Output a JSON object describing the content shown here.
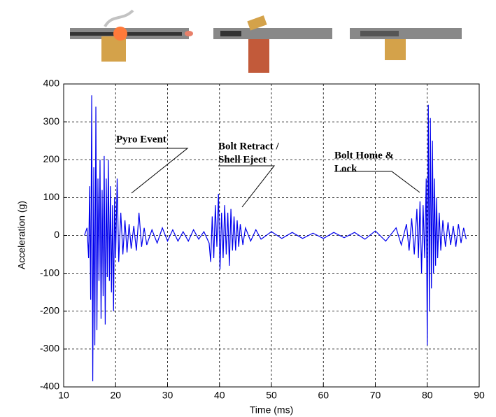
{
  "chart_data": {
    "type": "line",
    "x_label": "Time (ms)",
    "y_label": "Acceleration (g)",
    "xlim": [
      10,
      90
    ],
    "ylim": [
      -400,
      400
    ],
    "xticks": [
      10,
      20,
      30,
      40,
      50,
      60,
      70,
      80,
      90
    ],
    "yticks": [
      -400,
      -300,
      -200,
      -100,
      0,
      100,
      200,
      300,
      400
    ],
    "grid": true,
    "annotations": [
      {
        "lines": [
          "Pyro Event"
        ]
      },
      {
        "lines": [
          "Bolt Retract /",
          "Shell Eject"
        ]
      },
      {
        "lines": [
          "Bolt Home &",
          "Lock"
        ]
      }
    ],
    "series": [
      {
        "color": "#0000ee",
        "x": [
          14,
          14.5,
          14.8,
          15.0,
          15.2,
          15.4,
          15.6,
          15.8,
          16.0,
          16.2,
          16.4,
          16.6,
          16.8,
          17.0,
          17.2,
          17.4,
          17.6,
          17.8,
          18.0,
          18.2,
          18.4,
          18.6,
          18.8,
          19.0,
          19.2,
          19.4,
          19.6,
          19.8,
          20.0,
          20.3,
          20.6,
          21.0,
          21.4,
          21.8,
          22.2,
          22.6,
          23.0,
          23.5,
          24.0,
          24.5,
          25.0,
          25.5,
          26.0,
          27,
          28,
          29,
          30,
          31,
          32,
          33,
          34,
          35,
          36,
          37,
          38,
          38.3,
          38.6,
          38.9,
          39.2,
          39.5,
          39.8,
          40.1,
          40.4,
          40.7,
          41.0,
          41.3,
          41.6,
          41.9,
          42.2,
          42.5,
          42.8,
          43.1,
          43.4,
          43.7,
          44.0,
          44.5,
          45,
          46,
          47,
          48,
          50,
          52,
          54,
          56,
          58,
          60,
          62,
          64,
          66,
          68,
          70,
          72,
          74,
          75,
          76,
          76.5,
          77,
          77.5,
          78,
          78.3,
          78.6,
          78.9,
          79.2,
          79.5,
          79.8,
          80.0,
          80.2,
          80.4,
          80.6,
          80.8,
          81.0,
          81.2,
          81.4,
          81.6,
          81.8,
          82.0,
          82.3,
          82.6,
          83.0,
          83.5,
          84,
          84.5,
          85,
          85.5,
          86,
          86.5,
          87,
          87.5
        ],
        "values": [
          0,
          20,
          -60,
          130,
          -170,
          370,
          -385,
          180,
          -290,
          340,
          -250,
          150,
          -120,
          200,
          -220,
          120,
          -160,
          210,
          -235,
          150,
          -110,
          200,
          -120,
          130,
          -150,
          80,
          -200,
          100,
          -60,
          150,
          -70,
          60,
          -50,
          40,
          -45,
          30,
          -35,
          25,
          -40,
          60,
          -30,
          20,
          -25,
          15,
          -20,
          20,
          -15,
          15,
          -15,
          10,
          -15,
          15,
          -10,
          10,
          -20,
          -70,
          50,
          -60,
          80,
          -30,
          110,
          -90,
          60,
          -60,
          80,
          -50,
          60,
          -80,
          70,
          -40,
          50,
          -40,
          40,
          -30,
          30,
          -25,
          20,
          -15,
          15,
          -10,
          10,
          -8,
          8,
          -8,
          6,
          -8,
          8,
          -6,
          8,
          -10,
          12,
          -15,
          20,
          -25,
          30,
          -40,
          45,
          -50,
          70,
          -60,
          90,
          -100,
          80,
          -60,
          150,
          -290,
          345,
          -200,
          310,
          -140,
          250,
          -100,
          150,
          -80,
          100,
          -60,
          60,
          -40,
          40,
          -30,
          35,
          -25,
          25,
          -30,
          30,
          -20,
          20,
          -10
        ]
      }
    ]
  }
}
